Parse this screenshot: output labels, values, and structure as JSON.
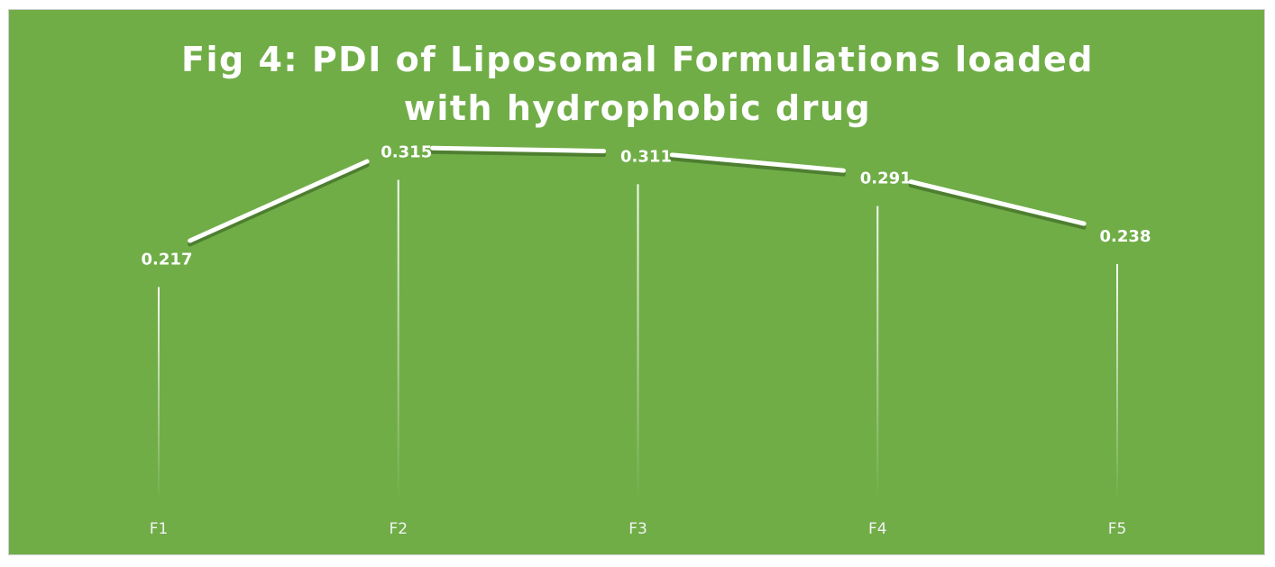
{
  "colors": {
    "background": "#70ad47",
    "line": "#ffffff",
    "line_shadow": "#4e7f30",
    "drop_line": "#ffffff",
    "label_text": "#ffffff",
    "tick_text": "#f2f2f2"
  },
  "chart_data": {
    "type": "line",
    "title": "Fig 4: PDI of Liposomal Formulations loaded\nwith hydrophobic drug",
    "categories": [
      "F1",
      "F2",
      "F3",
      "F4",
      "F5"
    ],
    "series": [
      {
        "values": [
          0.217,
          0.315,
          0.311,
          0.291,
          0.238
        ],
        "data_labels": [
          "0.217",
          "0.315",
          "0.311",
          "0.291",
          "0.238"
        ]
      }
    ],
    "xlabel": "",
    "ylabel": "",
    "ylim": [
      0,
      0.35
    ],
    "y_axis_visible": false,
    "grid": false,
    "drop_lines": true,
    "legend": "none"
  }
}
